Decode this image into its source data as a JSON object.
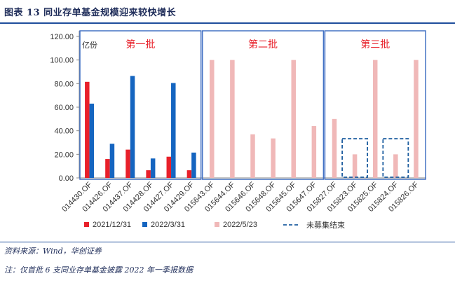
{
  "figure": {
    "title": "图表 13    同业存单基金规模迎来较快增长",
    "source": "资料来源：Wind，华创证券",
    "note": "注：仅首批 6 支同业存单基金披露 2022 年一季报数据"
  },
  "chart_data": {
    "type": "bar",
    "unit_label": "亿份",
    "ylim": [
      0,
      120
    ],
    "yticks": [
      "0.00",
      "20.00",
      "40.00",
      "60.00",
      "80.00",
      "100.00",
      "120.00"
    ],
    "categories": [
      "014430.OF",
      "014426.OF",
      "014437.OF",
      "014428.OF",
      "014427.OF",
      "014429.OF",
      "015643.OF",
      "015644.OF",
      "015646.OF",
      "015648.OF",
      "015645.OF",
      "015647.OF",
      "015827.OF",
      "015823.OF",
      "015825.OF",
      "015824.OF",
      "015826.OF"
    ],
    "series": [
      {
        "name": "2021/12/31",
        "color": "#e8202a",
        "values": [
          81.5,
          16,
          24,
          6.5,
          18,
          6.5,
          null,
          null,
          null,
          null,
          null,
          null,
          null,
          null,
          null,
          null,
          null
        ]
      },
      {
        "name": "2022/3/31",
        "color": "#1565c0",
        "values": [
          63,
          29,
          86.5,
          16.5,
          80.5,
          21.5,
          null,
          null,
          null,
          null,
          null,
          null,
          null,
          null,
          null,
          null,
          null
        ]
      },
      {
        "name": "2022/5/23",
        "color": "#f0b8b8",
        "values": [
          null,
          null,
          null,
          null,
          null,
          null,
          100,
          100,
          37,
          33.5,
          100,
          44,
          50,
          20,
          100,
          20,
          100
        ]
      }
    ],
    "unfinished_label": "未募集结束",
    "unfinished_indices": [
      13,
      15
    ],
    "batches": [
      {
        "label": "第一批",
        "from": 0,
        "to": 5
      },
      {
        "label": "第二批",
        "from": 6,
        "to": 11
      },
      {
        "label": "第三批",
        "from": 12,
        "to": 16
      }
    ],
    "legend_position": "bottom",
    "grid": false
  }
}
